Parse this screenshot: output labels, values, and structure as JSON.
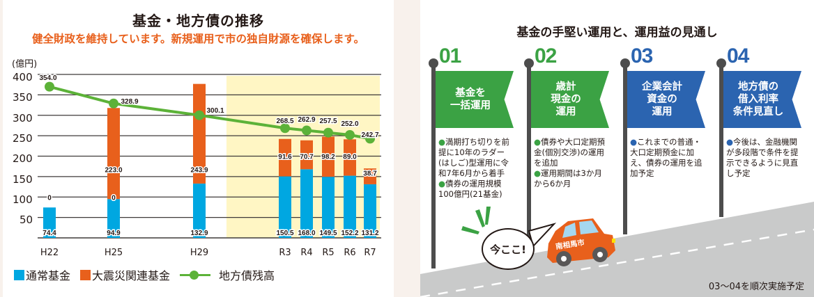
{
  "left": {
    "title": "基金・地方債の推移",
    "subtitle": "健全財政を維持しています。新規運用で市の独自財源を確保します。",
    "unit": "(億円)",
    "legend": {
      "regular_fund": "通常基金",
      "disaster_fund": "大震災関連基金",
      "debt_balance": "地方債残高"
    },
    "y_ticks": [
      "400",
      "350",
      "300",
      "250",
      "200",
      "150",
      "100",
      "50"
    ],
    "x_ticks": [
      "H22",
      "H25",
      "H29",
      "R3",
      "R4",
      "R5",
      "R6",
      "R7"
    ]
  },
  "chart_data": {
    "type": "bar",
    "title": "基金・地方債の推移",
    "subtitle": "健全財政を維持しています。新規運用で市の独自財源を確保します。",
    "ylabel": "(億円)",
    "xlabel": "",
    "ylim": [
      0,
      400
    ],
    "y_ticks": [
      50,
      100,
      150,
      200,
      250,
      300,
      350,
      400
    ],
    "grid": true,
    "legend_position": "bottom",
    "stacked": true,
    "highlight_range": [
      "R3",
      "R7"
    ],
    "categories": [
      "H22",
      "H25",
      "H29",
      "R3",
      "R4",
      "R5",
      "R6",
      "R7"
    ],
    "series": [
      {
        "name": "通常基金",
        "type": "bar",
        "color": "#00a7e1",
        "values": [
          74.4,
          94.9,
          132.9,
          150.5,
          168.0,
          149.5,
          152.2,
          131.2
        ]
      },
      {
        "name": "大震災関連基金",
        "type": "bar",
        "color": "#e8601c",
        "values": [
          0,
          223.0,
          243.9,
          91.6,
          70.7,
          98.2,
          89.0,
          38.7
        ]
      },
      {
        "name": "地方債残高",
        "type": "line",
        "color": "#5cb238",
        "values": [
          354.0,
          328.9,
          300.1,
          268.5,
          262.9,
          257.5,
          252.0,
          242.7
        ]
      }
    ],
    "data_labels": {
      "regular": [
        "74.4",
        "94.9",
        "132.9",
        "150.5",
        "168.0",
        "149.5",
        "152.2",
        "131.2"
      ],
      "disaster": [
        "0",
        "223.0",
        "243.9",
        "91.6",
        "70.7",
        "98.2",
        "89.0",
        "38.7"
      ],
      "debt": [
        "354.0",
        "328.9",
        "300.1",
        "268.5",
        "262.9",
        "257.5",
        "252.0",
        "242.7"
      ],
      "extra_zero_label_h25": "0"
    }
  },
  "right": {
    "title": "基金の手堅い運用と、運用益の見通し",
    "steps": [
      {
        "number": "01",
        "color": "#3ba244",
        "flag": "基金を\n一括運用",
        "items": [
          "満期打ち切りを前提に10年のラダー(はしご)型運用に令和7年6月から着手",
          "債券の運用規模100億円(21基金)"
        ]
      },
      {
        "number": "02",
        "color": "#3ba244",
        "flag": "歳計\n現金の\n運用",
        "items": [
          "債券や大口定期預金(個別交渉)の運用を追加",
          "運用期間は3か月から6か月"
        ]
      },
      {
        "number": "03",
        "color": "#2b64b0",
        "flag": "企業会計\n資金の\n運用",
        "items": [
          "これまでの普通・大口定期預金に加え、債券の運用を追加予定"
        ]
      },
      {
        "number": "04",
        "color": "#2b64b0",
        "flag": "地方債の\n借入利率\n条件見直し",
        "items": [
          "今後は、金融機関が多段階で条件を提示できるように見直し予定"
        ]
      }
    ],
    "speech": "今ここ!",
    "car_label": "南相馬市",
    "footnote": "03〜04を順次実施予定"
  }
}
